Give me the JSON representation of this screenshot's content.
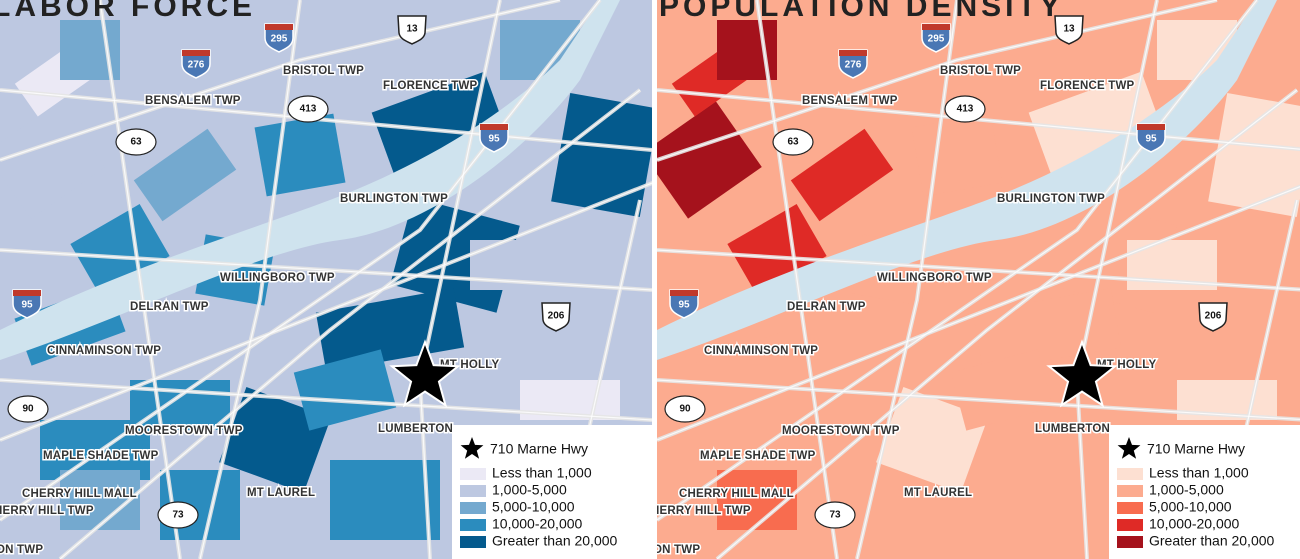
{
  "maps": [
    {
      "title": "LABOR FORCE",
      "places": [
        "BRISTOL TWP",
        "BENSALEM TWP",
        "FLORENCE TWP",
        "BURLINGTON TWP",
        "WILLINGBORO TWP",
        "DELRAN TWP",
        "CINNAMINSON TWP",
        "MT HOLLY",
        "LUMBERTON",
        "MOORESTOWN TWP",
        "MAPLE SHADE TWP",
        "CHERRY HILL MALL",
        "MT LAUREL",
        "HERRY HILL TWP",
        "ON TWP"
      ],
      "shields": [
        "295",
        "276",
        "13",
        "413",
        "63",
        "95",
        "95",
        "206",
        "90",
        "73"
      ],
      "legend": {
        "marker": "710 Marne Hwy",
        "items": [
          {
            "label": "Less than 1,000",
            "color": "#ebe9f5"
          },
          {
            "label": "1,000-5,000",
            "color": "#bdc8e1"
          },
          {
            "label": "5,000-10,000",
            "color": "#74a9cf"
          },
          {
            "label": "10,000-20,000",
            "color": "#2b8cbe"
          },
          {
            "label": "Greater than 20,000",
            "color": "#045a8d"
          }
        ]
      }
    },
    {
      "title": "POPULATION DENSITY",
      "places": [
        "BRISTOL TWP",
        "BENSALEM TWP",
        "FLORENCE TWP",
        "BURLINGTON TWP",
        "WILLINGBORO TWP",
        "DELRAN TWP",
        "CINNAMINSON TWP",
        "MT HOLLY",
        "LUMBERTON",
        "MOORESTOWN TWP",
        "MAPLE SHADE TWP",
        "CHERRY HILL MALL",
        "MT LAUREL",
        "HERRY HILL TWP",
        "ON TWP"
      ],
      "shields": [
        "295",
        "276",
        "13",
        "413",
        "63",
        "95",
        "95",
        "206",
        "90",
        "73"
      ],
      "legend": {
        "marker": "710 Marne Hwy",
        "items": [
          {
            "label": "Less than 1,000",
            "color": "#fde0d2"
          },
          {
            "label": "1,000-5,000",
            "color": "#fcab8f"
          },
          {
            "label": "5,000-10,000",
            "color": "#f86c4f"
          },
          {
            "label": "10,000-20,000",
            "color": "#df2a26"
          },
          {
            "label": "Greater than 20,000",
            "color": "#a5121c"
          }
        ]
      }
    }
  ]
}
